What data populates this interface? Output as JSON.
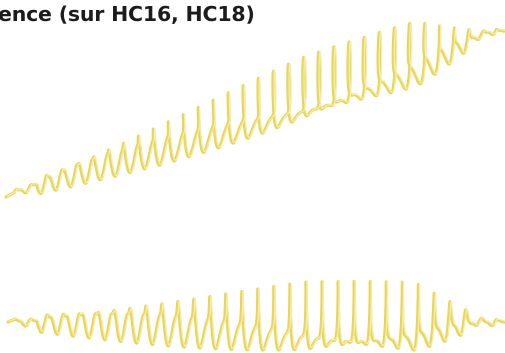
{
  "heading": {
    "text": "ence (sur HC16, HC18)"
  },
  "colors": {
    "heading": "#1c1c1c",
    "wave_outer": "#e8d65a",
    "wave_inner": "#f6ecac",
    "background": "#ffffff"
  },
  "figures": [
    {
      "name": "tilted-waveform",
      "icon": "yellow-oscillating-wave"
    },
    {
      "name": "flat-waveform",
      "icon": "yellow-oscillating-wave"
    }
  ]
}
